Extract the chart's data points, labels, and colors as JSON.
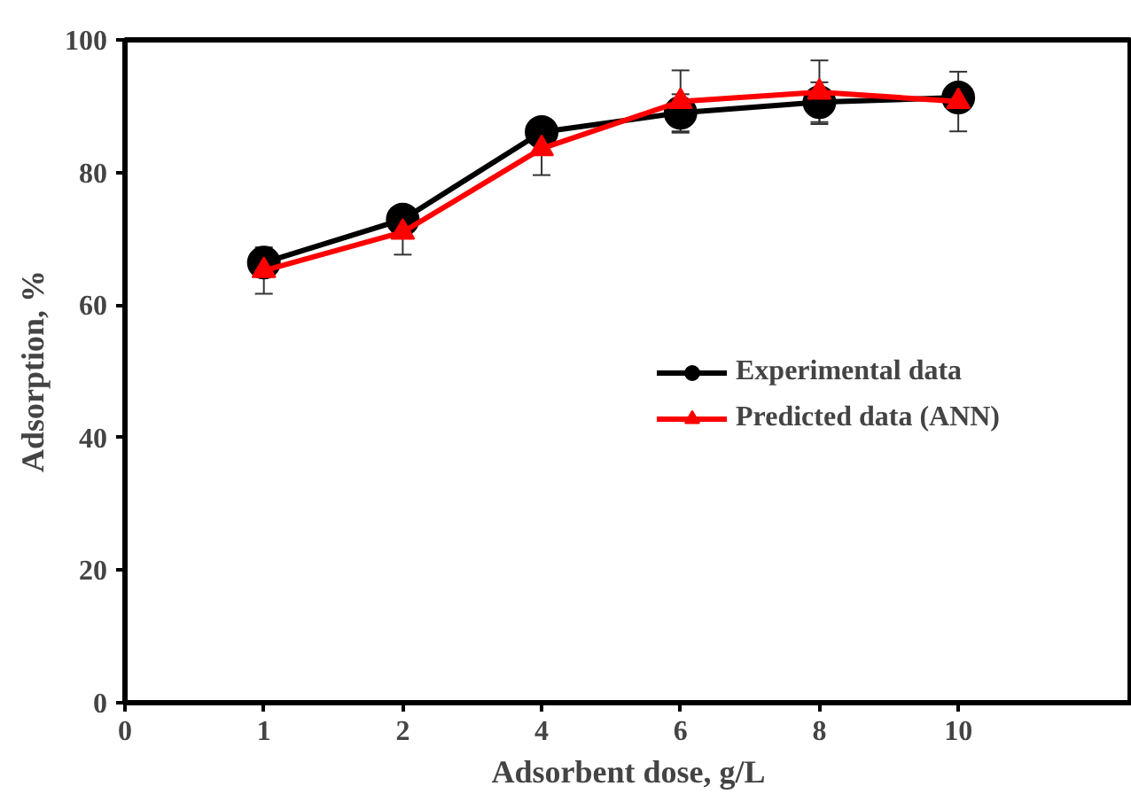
{
  "chart_data": {
    "type": "line",
    "xlabel": "Adsorbent dose, g/L",
    "ylabel": "Adsorption, %",
    "categories": [
      "0",
      "1",
      "2",
      "4",
      "6",
      "8",
      "10"
    ],
    "ylim": [
      0,
      100
    ],
    "yticks": [
      0,
      20,
      40,
      60,
      80,
      100
    ],
    "grid": false,
    "legend": "right",
    "series": [
      {
        "name": "Experimental data",
        "color": "#000000",
        "marker": "circle",
        "values": [
          null,
          66.4,
          72.9,
          86.1,
          89.0,
          90.6,
          91.3
        ],
        "errors": [
          null,
          1.5,
          1.5,
          1.2,
          2.8,
          3.0,
          1.0
        ]
      },
      {
        "name": "Predicted data (ANN)",
        "color": "#ff0000",
        "marker": "triangle",
        "values": [
          null,
          65.2,
          71.0,
          83.6,
          90.7,
          92.1,
          90.7
        ],
        "errors": [
          null,
          3.5,
          3.4,
          4.0,
          4.7,
          4.8,
          4.5
        ]
      }
    ]
  }
}
